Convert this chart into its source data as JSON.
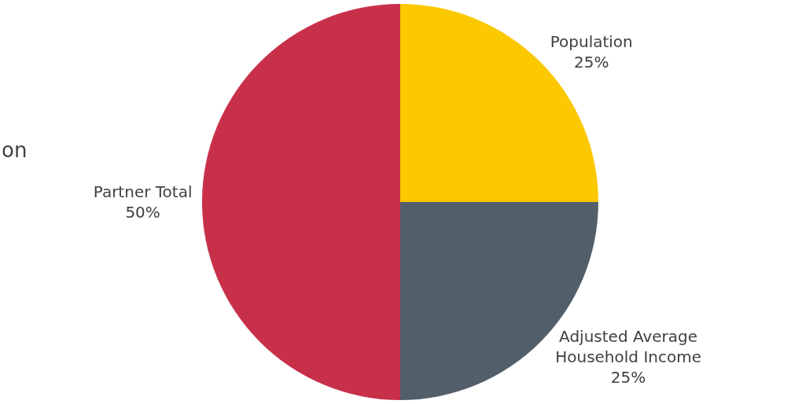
{
  "chart_data": {
    "type": "pie",
    "categories": [
      "Population",
      "Adjusted Average Household Income",
      "Partner Total"
    ],
    "values": [
      25,
      25,
      50
    ],
    "value_labels": [
      "25%",
      "25%",
      "50%"
    ],
    "colors": [
      "#fcc800",
      "#525f6b",
      "#c8304a"
    ],
    "annotations": [
      "on"
    ],
    "legend": false
  }
}
